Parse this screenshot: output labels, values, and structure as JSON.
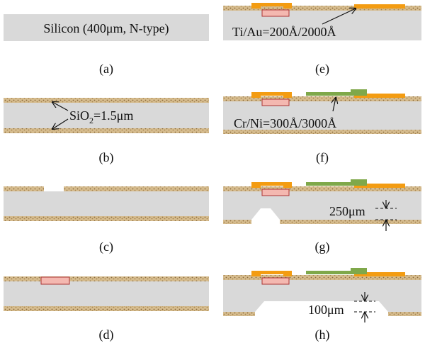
{
  "panels": {
    "a": {
      "label": "(a)",
      "text": "Silicon (400μm, N-type)"
    },
    "b": {
      "label": "(b)",
      "text": {
        "base": "SiO",
        "sub": "2",
        "rest": "=1.5μm"
      }
    },
    "c": {
      "label": "(c)"
    },
    "d": {
      "label": "(d)"
    },
    "e": {
      "label": "(e)",
      "text": "Ti/Au=200Å/2000Å"
    },
    "f": {
      "label": "(f)",
      "text": "Cr/Ni=300Å/3000Å"
    },
    "g": {
      "label": "(g)",
      "text": "250μm"
    },
    "h": {
      "label": "(h)",
      "text": "100μm"
    }
  }
}
